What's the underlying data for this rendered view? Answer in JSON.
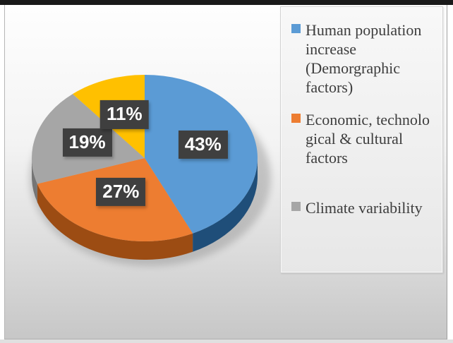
{
  "page": {
    "top_bar_color": "#1a1a1a",
    "background_top": "#fefefe",
    "background_bottom": "#c7c7c7"
  },
  "chart_data": {
    "type": "pie",
    "style": "3d",
    "title": "",
    "legend_position": "right",
    "grid": false,
    "label_style": {
      "background": "#3f3f3f",
      "text_color": "#ffffff"
    },
    "slices": [
      {
        "legend_label": "Human population increase (Demorgraphic factors)",
        "legend_lines": [
          "Human population",
          "increase",
          "(Demorgraphic",
          "factors)"
        ],
        "value": 43,
        "data_label": "43%",
        "color": "#5b9bd5",
        "side_color": "#1f4e79",
        "in_legend": true
      },
      {
        "legend_label": "Economic, technological & cultural factors",
        "legend_lines": [
          "Economic, technolo",
          "gical & cultural",
          "factors"
        ],
        "value": 27,
        "data_label": "27%",
        "color": "#ed7d31",
        "side_color": "#9c4c13",
        "in_legend": true
      },
      {
        "legend_label": "Climate variability",
        "legend_lines": [
          "Climate variability"
        ],
        "value": 19,
        "data_label": "19%",
        "color": "#a6a6a6",
        "side_color": "#757575",
        "in_legend": true
      },
      {
        "legend_label": "",
        "legend_lines": [],
        "value": 11,
        "data_label": "11%",
        "color": "#ffc000",
        "side_color": "#b38600",
        "in_legend": false
      }
    ]
  }
}
